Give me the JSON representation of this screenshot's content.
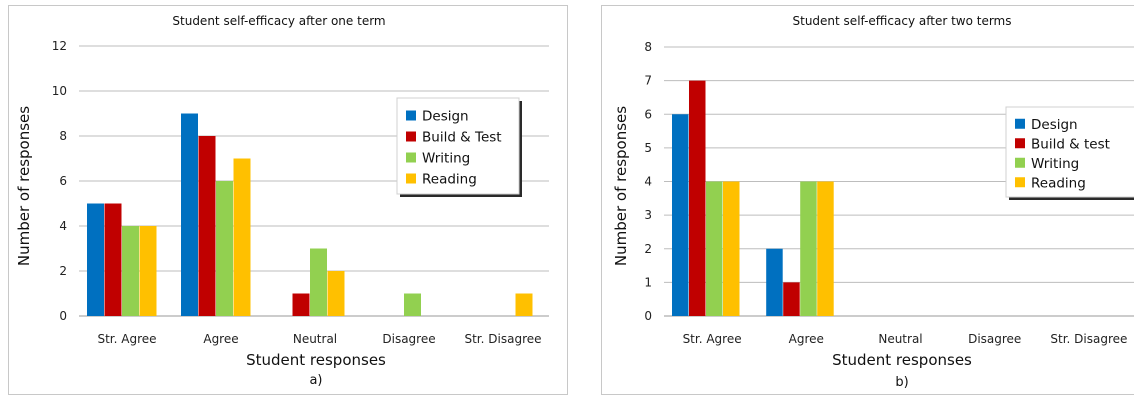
{
  "chart_data": [
    {
      "type": "bar",
      "title": "Student self-efficacy after one term",
      "xlabel": "Student responses",
      "ylabel": "Number of responses",
      "sublabel": "a)",
      "categories": [
        "Str. Agree",
        "Agree",
        "Neutral",
        "Disagree",
        "Str. Disagree"
      ],
      "ylim": [
        0,
        12
      ],
      "yticks": [
        0,
        2,
        4,
        6,
        8,
        10,
        12
      ],
      "grid": true,
      "legend_position": "right",
      "series": [
        {
          "name": "Design",
          "color": "#0070c0",
          "values": [
            5,
            9,
            0,
            0,
            0
          ]
        },
        {
          "name": "Build & Test",
          "color": "#c00000",
          "values": [
            5,
            8,
            1,
            0,
            0
          ]
        },
        {
          "name": "Writing",
          "color": "#92d050",
          "values": [
            4,
            6,
            3,
            1,
            0
          ]
        },
        {
          "name": "Reading",
          "color": "#ffc000",
          "values": [
            4,
            7,
            2,
            0,
            1
          ]
        }
      ]
    },
    {
      "type": "bar",
      "title": "Student self-efficacy after two terms",
      "xlabel": "Student responses",
      "ylabel": "Number of responses",
      "sublabel": "b)",
      "categories": [
        "Str. Agree",
        "Agree",
        "Neutral",
        "Disagree",
        "Str. Disagree"
      ],
      "ylim": [
        0,
        8
      ],
      "yticks": [
        0,
        1,
        2,
        3,
        4,
        5,
        6,
        7,
        8
      ],
      "grid": true,
      "legend_position": "right",
      "series": [
        {
          "name": "Design",
          "color": "#0070c0",
          "values": [
            6,
            2,
            0,
            0,
            0
          ]
        },
        {
          "name": "Build & test",
          "color": "#c00000",
          "values": [
            7,
            1,
            0,
            0,
            0
          ]
        },
        {
          "name": "Writing",
          "color": "#92d050",
          "values": [
            4,
            4,
            0,
            0,
            0
          ]
        },
        {
          "name": "Reading",
          "color": "#ffc000",
          "values": [
            4,
            4,
            0,
            0,
            0
          ]
        }
      ]
    }
  ]
}
